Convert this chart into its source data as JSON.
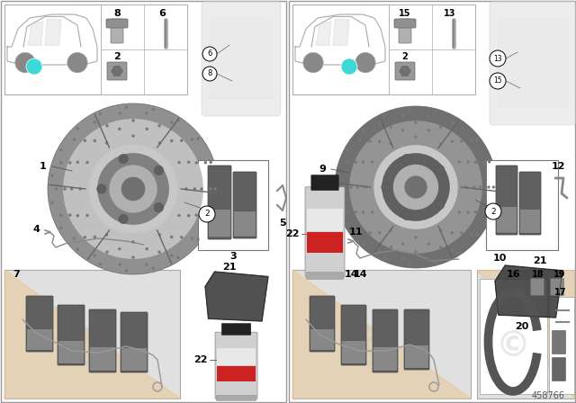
{
  "part_number": "458766",
  "bg": "#f5f5f5",
  "white": "#ffffff",
  "light_gray": "#e8e8e8",
  "med_gray": "#b0b0b0",
  "dark_gray": "#707070",
  "very_dark": "#383838",
  "teal": "#3dd9d6",
  "orange_bg": "#e8c99a",
  "border": "#aaaaaa",
  "red_label": "#cc2222"
}
